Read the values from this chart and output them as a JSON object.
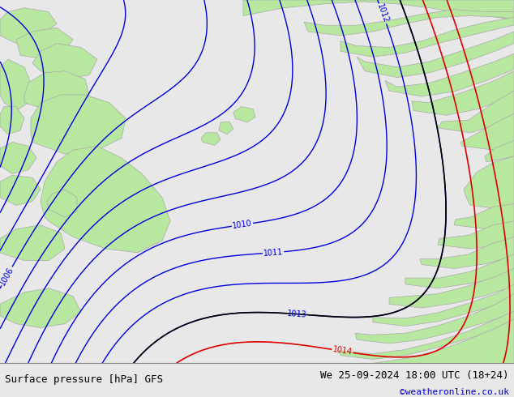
{
  "title_left": "Surface pressure [hPa] GFS",
  "title_right": "We 25-09-2024 18:00 UTC (18+24)",
  "credit": "©weatheronline.co.uk",
  "bg_ocean": "#d8d8d8",
  "bg_land": "#b8e8a0",
  "coast_color": "#aaaaaa",
  "contour_color_blue": "#0000dd",
  "contour_color_black": "#000000",
  "contour_color_red": "#dd0000",
  "text_color_black": "#000000",
  "text_color_blue": "#0000cc",
  "bottom_bar_color": "#e8e8e8",
  "font_size_bottom": 9,
  "font_size_labels": 7,
  "figsize": [
    6.34,
    4.9
  ],
  "dpi": 100
}
